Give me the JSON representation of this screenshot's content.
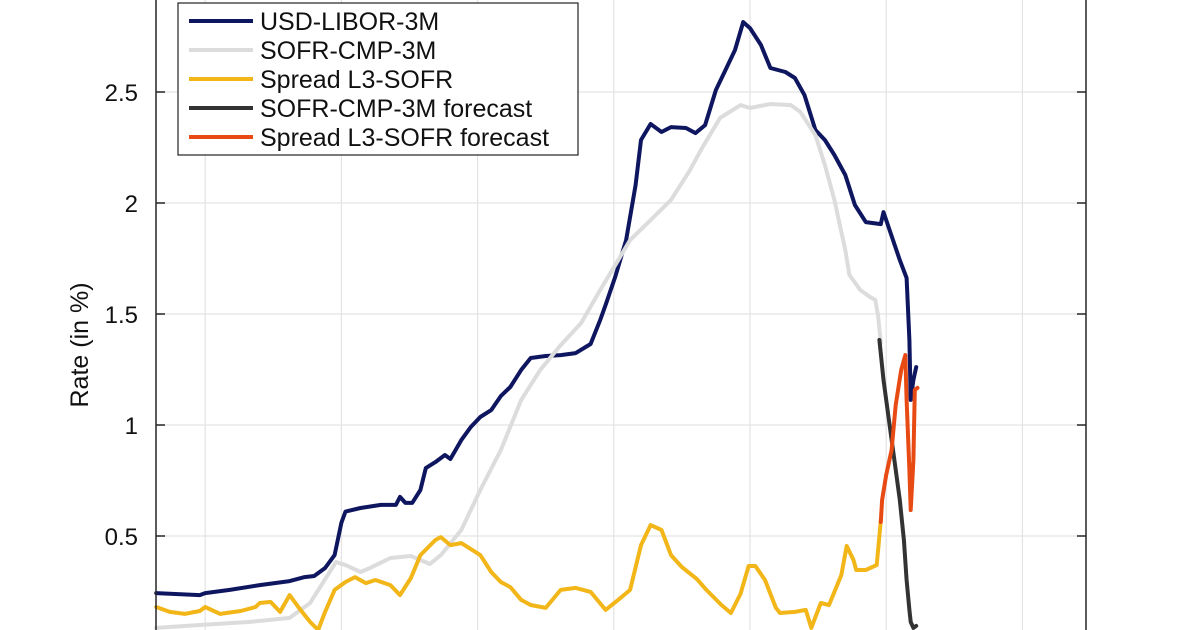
{
  "chart_data": {
    "type": "line",
    "title": "",
    "xlabel": "",
    "ylabel": "Rate (in %)",
    "ylim": [
      0.0,
      2.9
    ],
    "yticks": [
      0.5,
      1,
      1.5,
      2,
      2.5
    ],
    "ytick_labels": [
      "0.5",
      "1",
      "1.5",
      "2",
      "2.5"
    ],
    "xlim": [
      0.64,
      7.48
    ],
    "xticks": [
      1,
      2,
      3,
      4,
      5,
      6,
      7
    ],
    "xtick_labels": [],
    "grid": true,
    "legend_position": "upper-left",
    "series": [
      {
        "name": "USD-LIBOR-3M",
        "color": "#0f1660",
        "width": 4,
        "points": [
          [
            0.64,
            0.243
          ],
          [
            0.96,
            0.234
          ],
          [
            1.0,
            0.243
          ],
          [
            1.18,
            0.257
          ],
          [
            1.4,
            0.279
          ],
          [
            1.62,
            0.297
          ],
          [
            1.73,
            0.315
          ],
          [
            1.8,
            0.32
          ],
          [
            1.88,
            0.356
          ],
          [
            1.95,
            0.414
          ],
          [
            2.0,
            0.56
          ],
          [
            2.03,
            0.61
          ],
          [
            2.14,
            0.626
          ],
          [
            2.29,
            0.64
          ],
          [
            2.4,
            0.64
          ],
          [
            2.43,
            0.676
          ],
          [
            2.47,
            0.649
          ],
          [
            2.52,
            0.649
          ],
          [
            2.58,
            0.707
          ],
          [
            2.62,
            0.806
          ],
          [
            2.69,
            0.833
          ],
          [
            2.76,
            0.865
          ],
          [
            2.8,
            0.847
          ],
          [
            2.88,
            0.932
          ],
          [
            2.95,
            0.991
          ],
          [
            3.02,
            1.036
          ],
          [
            3.1,
            1.067
          ],
          [
            3.17,
            1.13
          ],
          [
            3.24,
            1.171
          ],
          [
            3.32,
            1.248
          ],
          [
            3.39,
            1.302
          ],
          [
            3.5,
            1.311
          ],
          [
            3.61,
            1.315
          ],
          [
            3.72,
            1.324
          ],
          [
            3.83,
            1.365
          ],
          [
            3.9,
            1.473
          ],
          [
            3.94,
            1.541
          ],
          [
            4.01,
            1.667
          ],
          [
            4.09,
            1.833
          ],
          [
            4.16,
            2.081
          ],
          [
            4.2,
            2.284
          ],
          [
            4.27,
            2.356
          ],
          [
            4.35,
            2.32
          ],
          [
            4.42,
            2.342
          ],
          [
            4.53,
            2.338
          ],
          [
            4.6,
            2.315
          ],
          [
            4.67,
            2.351
          ],
          [
            4.75,
            2.509
          ],
          [
            4.82,
            2.599
          ],
          [
            4.89,
            2.689
          ],
          [
            4.95,
            2.815
          ],
          [
            5.0,
            2.788
          ],
          [
            5.08,
            2.712
          ],
          [
            5.15,
            2.608
          ],
          [
            5.26,
            2.59
          ],
          [
            5.33,
            2.563
          ],
          [
            5.4,
            2.486
          ],
          [
            5.48,
            2.329
          ],
          [
            5.55,
            2.284
          ],
          [
            5.62,
            2.216
          ],
          [
            5.7,
            2.126
          ],
          [
            5.77,
            1.991
          ],
          [
            5.85,
            1.914
          ],
          [
            5.96,
            1.905
          ],
          [
            5.98,
            1.959
          ],
          [
            6.03,
            1.869
          ],
          [
            6.1,
            1.743
          ],
          [
            6.15,
            1.662
          ],
          [
            6.17,
            1.383
          ],
          [
            6.18,
            1.113
          ],
          [
            6.2,
            1.203
          ],
          [
            6.22,
            1.261
          ]
        ]
      },
      {
        "name": "SOFR-CMP-3M",
        "color": "#dcdcdc",
        "width": 4,
        "points": [
          [
            0.64,
            0.086
          ],
          [
            0.96,
            0.099
          ],
          [
            1.33,
            0.113
          ],
          [
            1.62,
            0.131
          ],
          [
            1.77,
            0.198
          ],
          [
            1.96,
            0.383
          ],
          [
            2.03,
            0.369
          ],
          [
            2.14,
            0.338
          ],
          [
            2.21,
            0.356
          ],
          [
            2.36,
            0.401
          ],
          [
            2.51,
            0.41
          ],
          [
            2.58,
            0.392
          ],
          [
            2.65,
            0.374
          ],
          [
            2.73,
            0.414
          ],
          [
            2.88,
            0.527
          ],
          [
            3.02,
            0.707
          ],
          [
            3.17,
            0.887
          ],
          [
            3.32,
            1.113
          ],
          [
            3.46,
            1.248
          ],
          [
            3.61,
            1.36
          ],
          [
            3.76,
            1.459
          ],
          [
            3.9,
            1.608
          ],
          [
            4.01,
            1.72
          ],
          [
            4.12,
            1.833
          ],
          [
            4.27,
            1.923
          ],
          [
            4.42,
            2.014
          ],
          [
            4.56,
            2.149
          ],
          [
            4.64,
            2.239
          ],
          [
            4.78,
            2.383
          ],
          [
            4.93,
            2.441
          ],
          [
            5.0,
            2.428
          ],
          [
            5.15,
            2.446
          ],
          [
            5.3,
            2.441
          ],
          [
            5.37,
            2.41
          ],
          [
            5.48,
            2.306
          ],
          [
            5.55,
            2.171
          ],
          [
            5.62,
            2.014
          ],
          [
            5.7,
            1.788
          ],
          [
            5.73,
            1.676
          ],
          [
            5.81,
            1.608
          ],
          [
            5.88,
            1.577
          ],
          [
            5.92,
            1.563
          ],
          [
            5.94,
            1.495
          ],
          [
            5.96,
            1.369
          ]
        ]
      },
      {
        "name": "Spread L3-SOFR",
        "color": "#f2b619",
        "width": 4,
        "points": [
          [
            0.64,
            0.18
          ],
          [
            0.74,
            0.158
          ],
          [
            0.85,
            0.149
          ],
          [
            0.96,
            0.162
          ],
          [
            1.0,
            0.18
          ],
          [
            1.11,
            0.149
          ],
          [
            1.26,
            0.162
          ],
          [
            1.37,
            0.18
          ],
          [
            1.4,
            0.198
          ],
          [
            1.48,
            0.203
          ],
          [
            1.55,
            0.158
          ],
          [
            1.62,
            0.234
          ],
          [
            1.7,
            0.167
          ],
          [
            1.77,
            0.113
          ],
          [
            1.83,
            0.077
          ],
          [
            1.88,
            0.158
          ],
          [
            1.95,
            0.257
          ],
          [
            2.03,
            0.293
          ],
          [
            2.1,
            0.315
          ],
          [
            2.18,
            0.288
          ],
          [
            2.25,
            0.302
          ],
          [
            2.36,
            0.279
          ],
          [
            2.43,
            0.234
          ],
          [
            2.51,
            0.311
          ],
          [
            2.58,
            0.414
          ],
          [
            2.69,
            0.482
          ],
          [
            2.73,
            0.495
          ],
          [
            2.8,
            0.459
          ],
          [
            2.88,
            0.468
          ],
          [
            2.95,
            0.441
          ],
          [
            3.02,
            0.414
          ],
          [
            3.1,
            0.338
          ],
          [
            3.17,
            0.293
          ],
          [
            3.24,
            0.27
          ],
          [
            3.32,
            0.212
          ],
          [
            3.39,
            0.189
          ],
          [
            3.5,
            0.176
          ],
          [
            3.61,
            0.257
          ],
          [
            3.72,
            0.266
          ],
          [
            3.83,
            0.248
          ],
          [
            3.94,
            0.167
          ],
          [
            4.05,
            0.221
          ],
          [
            4.12,
            0.257
          ],
          [
            4.2,
            0.459
          ],
          [
            4.27,
            0.549
          ],
          [
            4.35,
            0.527
          ],
          [
            4.42,
            0.414
          ],
          [
            4.5,
            0.36
          ],
          [
            4.61,
            0.306
          ],
          [
            4.68,
            0.257
          ],
          [
            4.79,
            0.189
          ],
          [
            4.86,
            0.153
          ],
          [
            4.93,
            0.239
          ],
          [
            4.99,
            0.365
          ],
          [
            5.04,
            0.365
          ],
          [
            5.11,
            0.302
          ],
          [
            5.19,
            0.176
          ],
          [
            5.22,
            0.153
          ],
          [
            5.33,
            0.158
          ],
          [
            5.41,
            0.167
          ],
          [
            5.45,
            0.086
          ],
          [
            5.52,
            0.198
          ],
          [
            5.58,
            0.189
          ],
          [
            5.67,
            0.324
          ],
          [
            5.71,
            0.455
          ],
          [
            5.76,
            0.392
          ],
          [
            5.78,
            0.347
          ],
          [
            5.85,
            0.347
          ],
          [
            5.93,
            0.369
          ],
          [
            5.95,
            0.5
          ],
          [
            5.96,
            0.572
          ]
        ]
      },
      {
        "name": "SOFR-CMP-3M forecast",
        "color": "#333333",
        "width": 4,
        "points": [
          [
            5.95,
            1.383
          ],
          [
            5.98,
            1.203
          ],
          [
            6.02,
            1.023
          ],
          [
            6.06,
            0.842
          ],
          [
            6.1,
            0.662
          ],
          [
            6.13,
            0.482
          ],
          [
            6.15,
            0.302
          ],
          [
            6.17,
            0.167
          ],
          [
            6.18,
            0.113
          ],
          [
            6.2,
            0.086
          ],
          [
            6.22,
            0.095
          ]
        ]
      },
      {
        "name": "Spread L3-SOFR forecast",
        "color": "#e84a14",
        "width": 4,
        "points": [
          [
            5.96,
            0.563
          ],
          [
            5.97,
            0.662
          ],
          [
            6.0,
            0.775
          ],
          [
            6.04,
            0.887
          ],
          [
            6.07,
            1.09
          ],
          [
            6.11,
            1.248
          ],
          [
            6.14,
            1.315
          ],
          [
            6.15,
            1.113
          ],
          [
            6.17,
            0.797
          ],
          [
            6.18,
            0.617
          ],
          [
            6.2,
            0.842
          ],
          [
            6.21,
            1.158
          ],
          [
            6.23,
            1.167
          ]
        ]
      }
    ]
  },
  "axis": {
    "ylabel": "Rate (in %)"
  },
  "legend": {
    "items": [
      {
        "label": "USD-LIBOR-3M",
        "color": "#0f1660"
      },
      {
        "label": "SOFR-CMP-3M",
        "color": "#dcdcdc"
      },
      {
        "label": "Spread L3-SOFR",
        "color": "#f2b619"
      },
      {
        "label": "SOFR-CMP-3M forecast",
        "color": "#333333"
      },
      {
        "label": "Spread L3-SOFR forecast",
        "color": "#e84a14"
      }
    ]
  }
}
